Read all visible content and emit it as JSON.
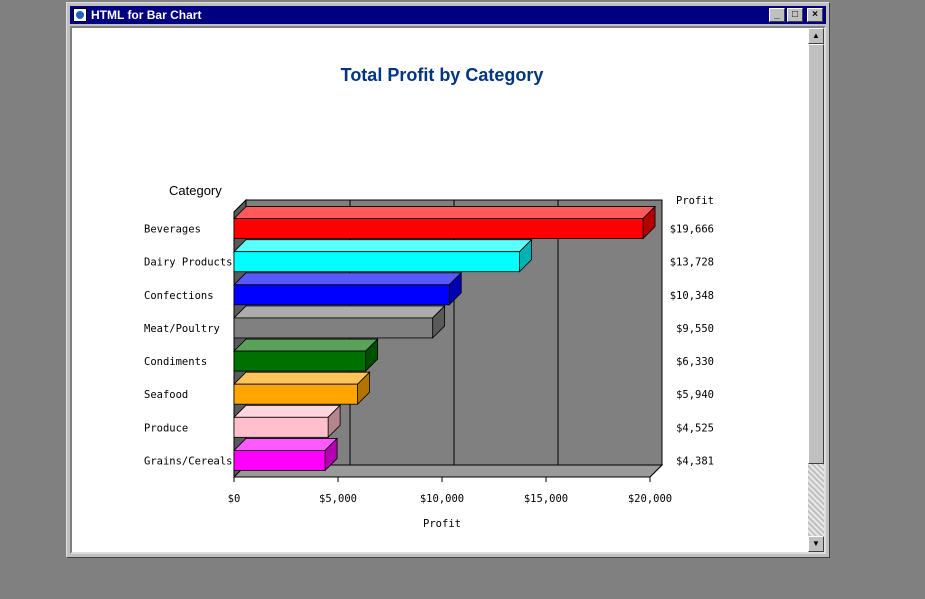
{
  "window": {
    "title": "HTML for Bar Chart"
  },
  "colors": {
    "plot_bg": "#808080",
    "title": "#003580"
  },
  "chart_data": {
    "type": "bar",
    "orientation": "horizontal",
    "title": "Total Profit by Category",
    "category_header": "Category",
    "value_header": "Profit",
    "xlabel": "Profit",
    "xlim": [
      0,
      20000
    ],
    "xticks": [
      0,
      5000,
      10000,
      15000,
      20000
    ],
    "xtick_labels": [
      "$0",
      "$5,000",
      "$10,000",
      "$15,000",
      "$20,000"
    ],
    "grid": true,
    "categories": [
      "Beverages",
      "Dairy Products",
      "Confections",
      "Meat/Poultry",
      "Condiments",
      "Seafood",
      "Produce",
      "Grains/Cereals"
    ],
    "values": [
      19666,
      13728,
      10348,
      9550,
      6330,
      5940,
      4525,
      4381
    ],
    "value_labels": [
      "$19,666",
      "$13,728",
      "$10,348",
      "$9,550",
      "$6,330",
      "$5,940",
      "$4,525",
      "$4,381"
    ],
    "bar_colors": [
      "#ff0000",
      "#00ffff",
      "#0000ff",
      "#808080",
      "#007000",
      "#ffa500",
      "#ffc0cb",
      "#ff00ff"
    ]
  }
}
